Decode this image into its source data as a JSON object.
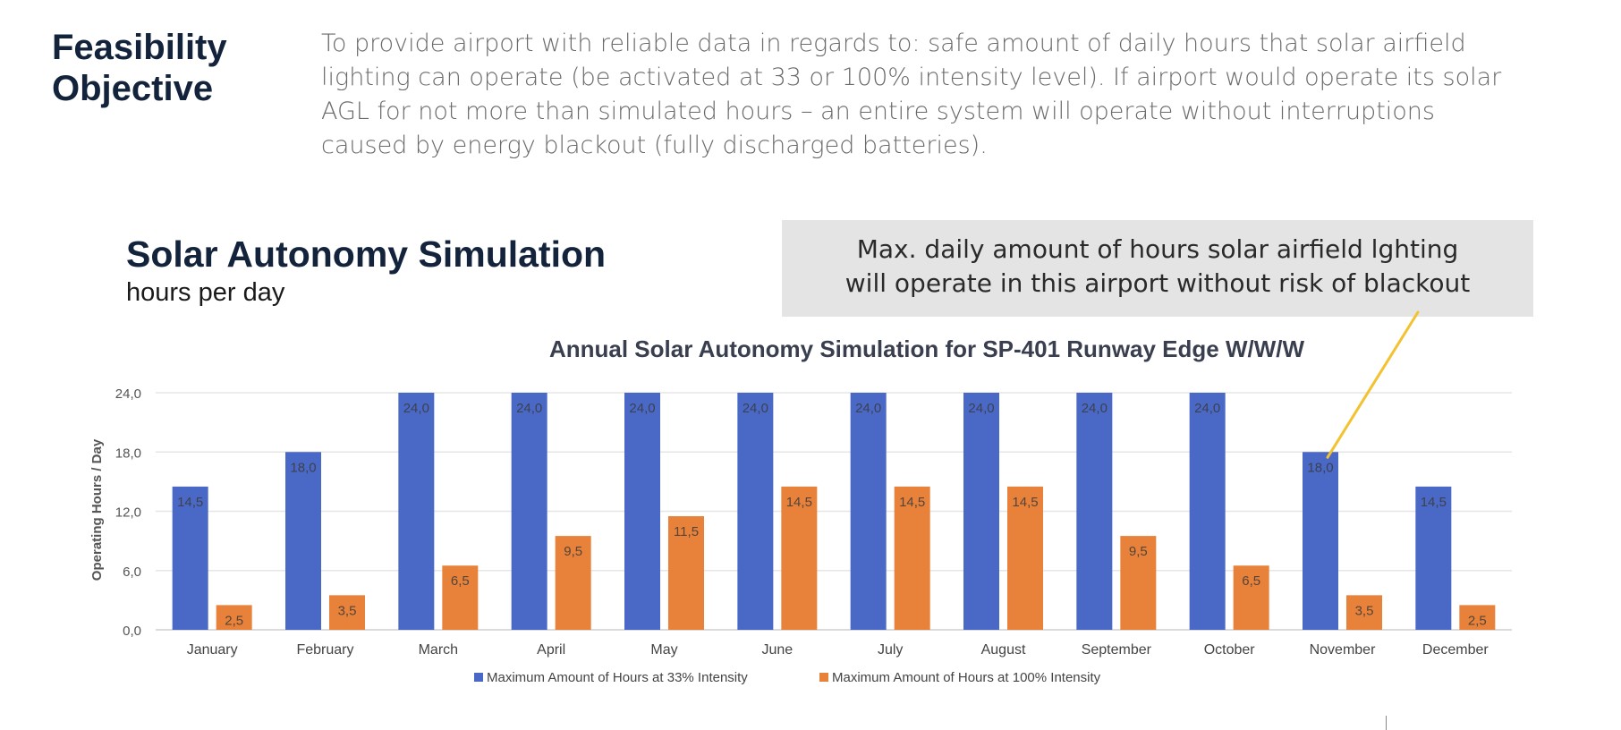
{
  "slide": {
    "heading_line1": "Feasibility",
    "heading_line2": "Objective",
    "objective_text": "To provide airport with reliable data in regards to: safe amount of daily hours that solar airfield lighting can operate (be activated at 33 or 100% intensity level). If airport would operate its solar AGL for not more than simulated hours – an entire system will operate without interruptions caused by energy blackout (fully discharged batteries).",
    "chart_heading": "Solar Autonomy Simulation",
    "chart_subheading": "hours per day",
    "callout_line1": "Max. daily amount of hours solar airfield lghting",
    "callout_line2": "will operate in this airport without risk of blackout"
  },
  "colors": {
    "series_33": "#4a69c6",
    "series_100": "#e8823a",
    "heading": "#14233c",
    "callout_bg": "#e4e4e4",
    "callout_line": "#f2c230"
  },
  "chart_data": {
    "type": "bar",
    "title": "Annual Solar Autonomy Simulation for SP-401 Runway Edge W/W/W",
    "xlabel": "",
    "ylabel": "Operating Hours / Day",
    "ylim": [
      0,
      24
    ],
    "yticks": [
      "0,0",
      "6,0",
      "12,0",
      "18,0",
      "24,0"
    ],
    "grid": true,
    "legend_position": "bottom",
    "categories": [
      "January",
      "February",
      "March",
      "April",
      "May",
      "June",
      "July",
      "August",
      "September",
      "October",
      "November",
      "December"
    ],
    "series": [
      {
        "name": "Maximum Amount of Hours at 33% Intensity",
        "values": [
          14.5,
          18.0,
          24.0,
          24.0,
          24.0,
          24.0,
          24.0,
          24.0,
          24.0,
          24.0,
          18.0,
          14.5
        ],
        "labels": [
          "14,5",
          "18,0",
          "24,0",
          "24,0",
          "24,0",
          "24,0",
          "24,0",
          "24,0",
          "24,0",
          "24,0",
          "18,0",
          "14,5"
        ]
      },
      {
        "name": "Maximum Amount of Hours at 100% Intensity",
        "values": [
          2.5,
          3.5,
          6.5,
          9.5,
          11.5,
          14.5,
          14.5,
          14.5,
          9.5,
          6.5,
          3.5,
          2.5
        ],
        "labels": [
          "2,5",
          "3,5",
          "6,5",
          "9,5",
          "11,5",
          "14,5",
          "14,5",
          "14,5",
          "9,5",
          "6,5",
          "3,5",
          "2,5"
        ]
      }
    ],
    "annotation_target": "November"
  }
}
